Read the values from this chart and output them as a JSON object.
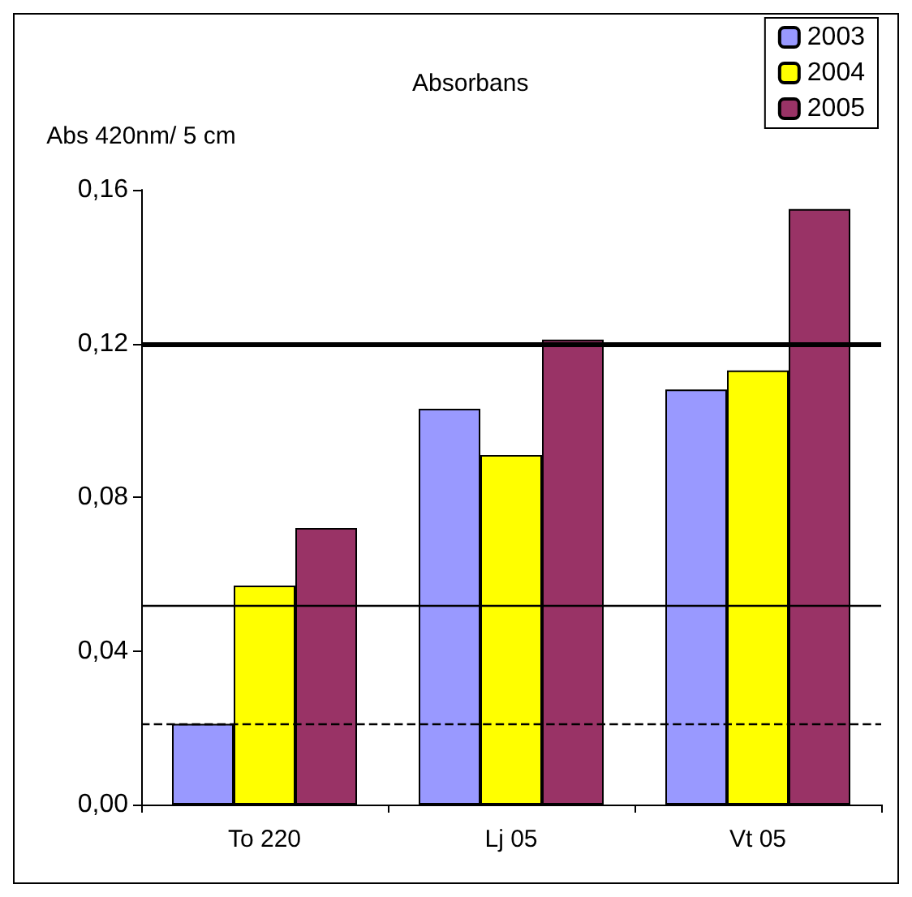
{
  "chart_data": {
    "type": "bar",
    "title": "Absorbans",
    "ylabel": "Abs 420nm/ 5 cm",
    "categories": [
      "To 220",
      "Lj 05",
      "Vt 05"
    ],
    "series": [
      {
        "name": "2003",
        "color": "#9999ff",
        "values": [
          0.021,
          0.103,
          0.108
        ]
      },
      {
        "name": "2004",
        "color": "#ffff00",
        "values": [
          0.057,
          0.091,
          0.113
        ]
      },
      {
        "name": "2005",
        "color": "#993366",
        "values": [
          0.072,
          0.121,
          0.155
        ]
      }
    ],
    "ylim": [
      0,
      0.16
    ],
    "yticks": [
      {
        "value": 0,
        "label": "0,00"
      },
      {
        "value": 0.04,
        "label": "0,04"
      },
      {
        "value": 0.08,
        "label": "0,08"
      },
      {
        "value": 0.12,
        "label": "0,12"
      },
      {
        "value": 0.16,
        "label": "0,16"
      }
    ],
    "ref_lines": [
      {
        "axis": "y",
        "value": 0.12,
        "color": "#000000",
        "line_style": "solid"
      },
      {
        "axis": "y",
        "value": 0.052,
        "color": "#000000",
        "line_style": "solid"
      },
      {
        "axis": "y",
        "value": 0.021,
        "color": "#000000",
        "line_style": "dashed"
      }
    ],
    "legend": "top right",
    "grid": false
  }
}
